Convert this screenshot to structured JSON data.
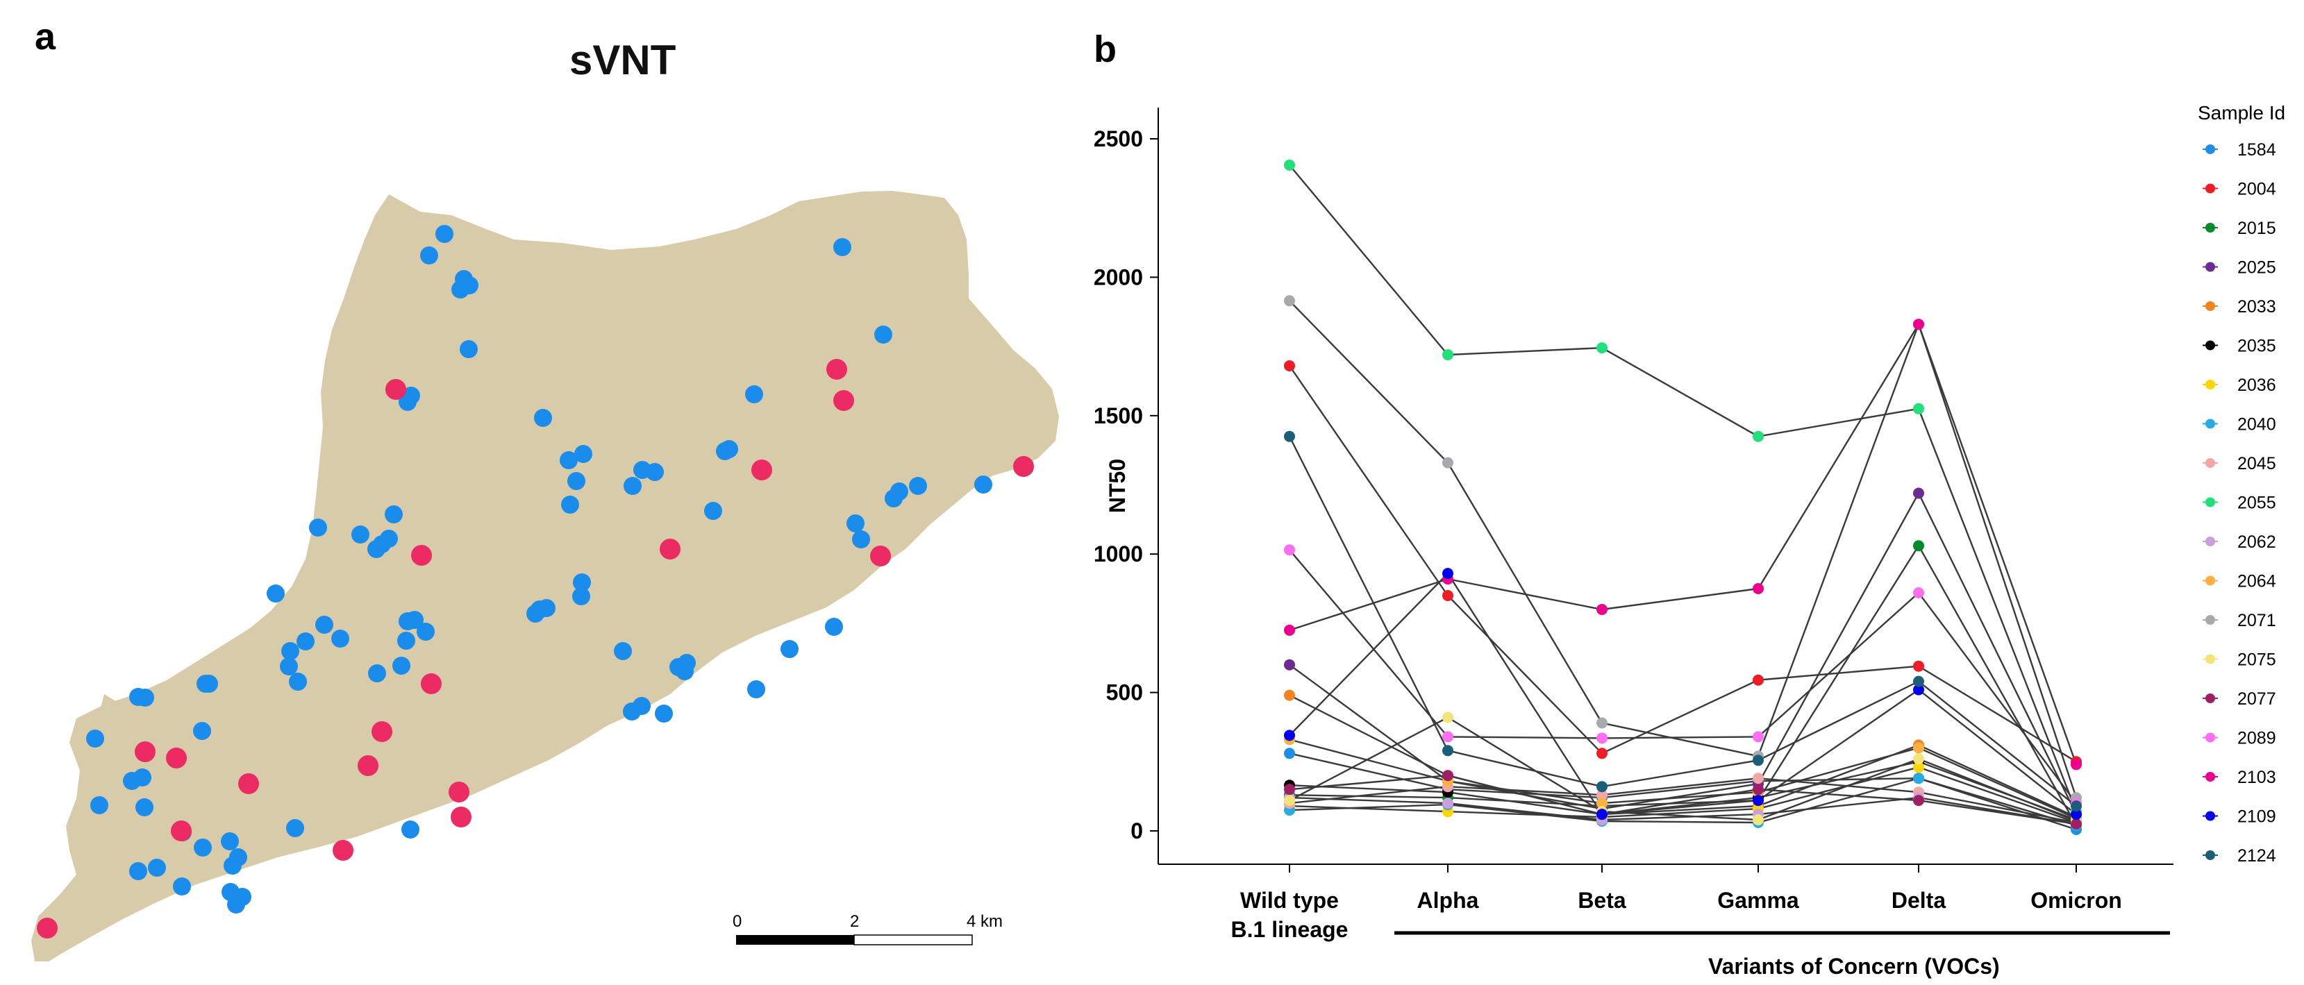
{
  "panel_a": {
    "letter": "a",
    "title": "sVNT",
    "scale_bar": {
      "labels": [
        "0",
        "2",
        "4 km"
      ]
    },
    "colors": {
      "land": "#d8cba9",
      "water": "#ffffff",
      "low_group": "#1a8ceb",
      "high_group": "#ec2a63"
    }
  },
  "panel_b": {
    "letter": "b",
    "bracket_label": "Variants of Concern (VOCs)",
    "legend_title": "Sample Id"
  },
  "chart_data": {
    "type": "line",
    "ylabel": "NT50",
    "xlabel": "",
    "ylim": [
      0,
      2500
    ],
    "yticks": [
      0,
      500,
      1000,
      1500,
      2000,
      2500
    ],
    "categories": [
      "Wild type B.1 lineage",
      "Alpha",
      "Beta",
      "Gamma",
      "Delta",
      "Omicron"
    ],
    "category_lines": [
      [
        "Wild type",
        "B.1 lineage"
      ],
      [
        "Alpha"
      ],
      [
        "Beta"
      ],
      [
        "Gamma"
      ],
      [
        "Delta"
      ],
      [
        "Omicron"
      ]
    ],
    "grid": false,
    "legend_position": "right",
    "series": [
      {
        "name": "1584",
        "color": "#1e8fe6",
        "values": [
          280,
          150,
          120,
          180,
          190,
          5
        ]
      },
      {
        "name": "2004",
        "color": "#ee1c24",
        "values": [
          1680,
          850,
          280,
          545,
          595,
          250
        ]
      },
      {
        "name": "2015",
        "color": "#008a2e",
        "values": [
          130,
          120,
          90,
          110,
          1030,
          20
        ]
      },
      {
        "name": "2025",
        "color": "#6a2c91",
        "values": [
          600,
          180,
          80,
          170,
          1220,
          60
        ]
      },
      {
        "name": "2033",
        "color": "#f58220",
        "values": [
          490,
          200,
          60,
          90,
          310,
          50
        ]
      },
      {
        "name": "2035",
        "color": "#000000",
        "values": [
          165,
          140,
          60,
          120,
          250,
          40
        ]
      },
      {
        "name": "2036",
        "color": "#ffd400",
        "values": [
          90,
          70,
          50,
          80,
          230,
          30
        ]
      },
      {
        "name": "2040",
        "color": "#29abe2",
        "values": [
          75,
          95,
          35,
          30,
          190,
          20
        ]
      },
      {
        "name": "2045",
        "color": "#f4a6a6",
        "values": [
          100,
          160,
          130,
          190,
          140,
          30
        ]
      },
      {
        "name": "2055",
        "color": "#21e07a",
        "values": [
          2405,
          1720,
          1745,
          1425,
          1525,
          70
        ]
      },
      {
        "name": "2062",
        "color": "#c9a0dc",
        "values": [
          120,
          100,
          40,
          60,
          120,
          25
        ]
      },
      {
        "name": "2064",
        "color": "#fbb040",
        "values": [
          330,
          180,
          100,
          140,
          300,
          45
        ]
      },
      {
        "name": "2071",
        "color": "#a7a9ac",
        "values": [
          1915,
          1330,
          390,
          270,
          1830,
          120
        ]
      },
      {
        "name": "2075",
        "color": "#f3e47a",
        "values": [
          110,
          410,
          70,
          40,
          260,
          35
        ]
      },
      {
        "name": "2077",
        "color": "#9e1f63",
        "values": [
          150,
          200,
          60,
          150,
          110,
          25
        ]
      },
      {
        "name": "2089",
        "color": "#ff6ef1",
        "values": [
          1015,
          340,
          335,
          340,
          860,
          100
        ]
      },
      {
        "name": "2103",
        "color": "#ec008c",
        "values": [
          725,
          910,
          800,
          875,
          1830,
          240
        ]
      },
      {
        "name": "2109",
        "color": "#0000ee",
        "values": [
          345,
          930,
          60,
          110,
          510,
          60
        ]
      },
      {
        "name": "2124",
        "color": "#1b5e7a",
        "values": [
          1425,
          290,
          160,
          255,
          540,
          90
        ]
      }
    ]
  }
}
